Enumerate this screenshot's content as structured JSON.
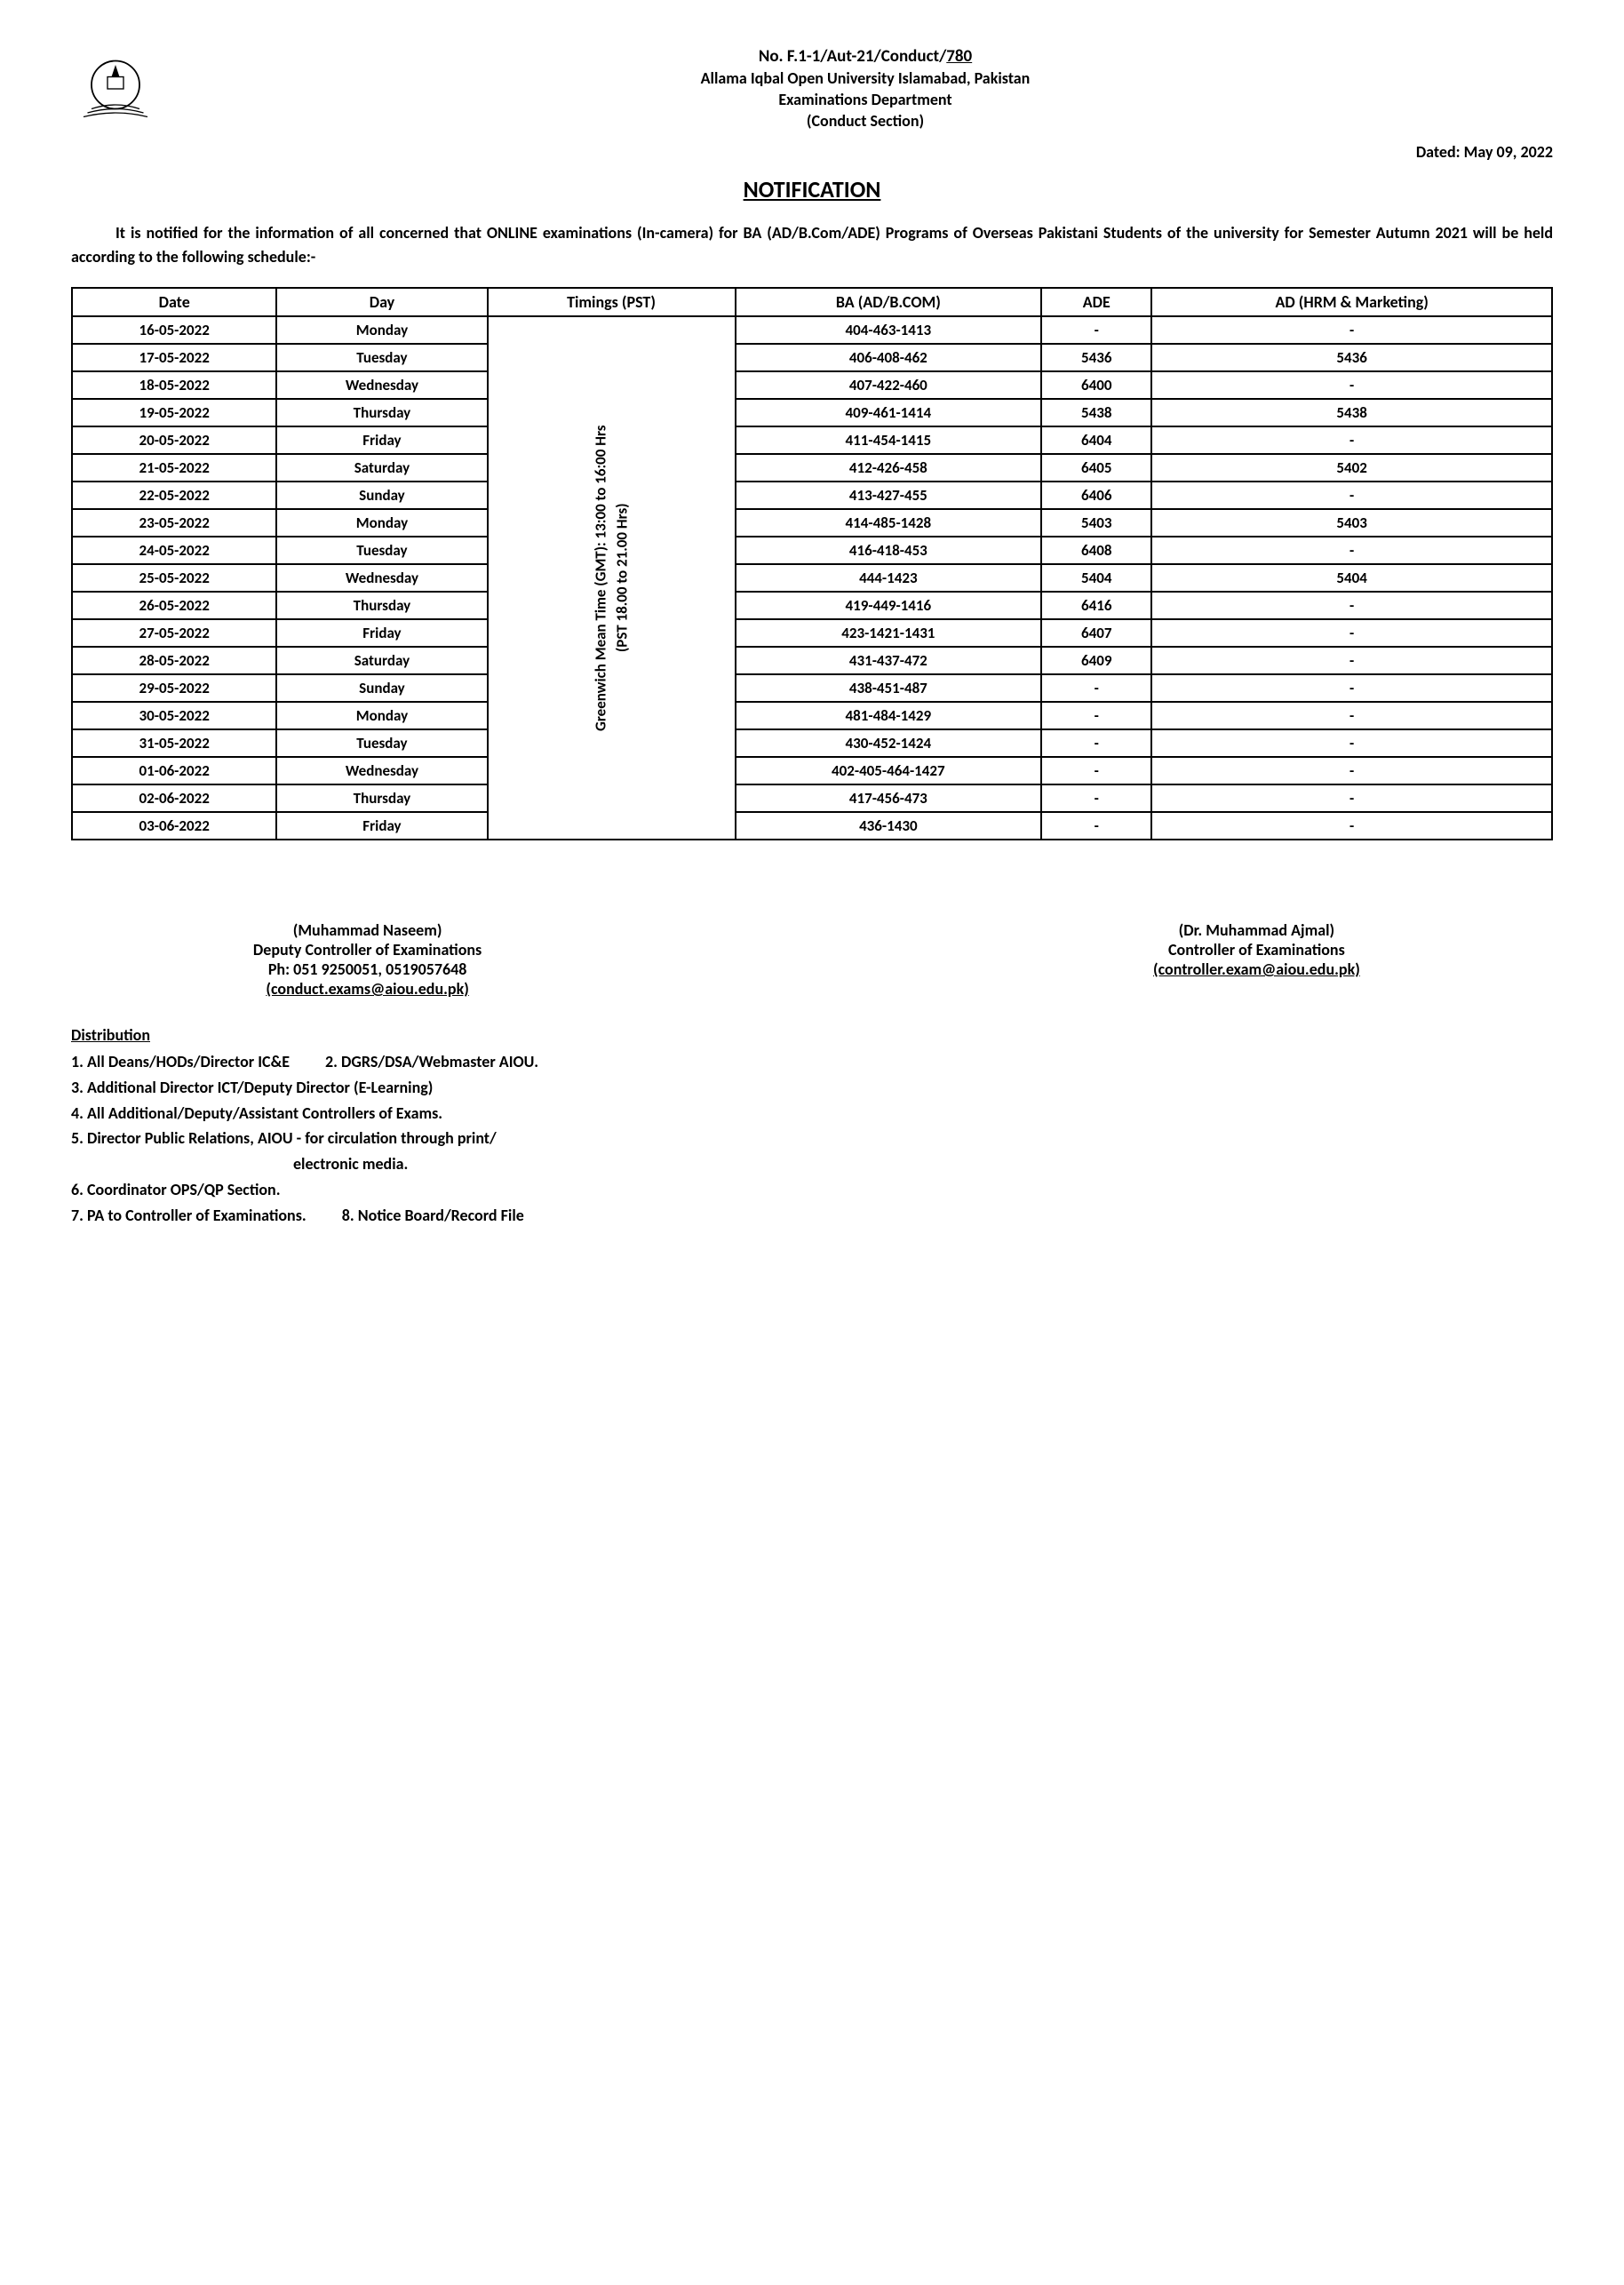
{
  "header": {
    "ref_no_prefix": "No. F.1-1/Aut-21/Conduct/",
    "ref_no_suffix": "780",
    "university": "Allama Iqbal Open University Islamabad, Pakistan",
    "department": "Examinations Department",
    "section": "(Conduct Section)",
    "dated": "Dated: May 09, 2022"
  },
  "title": "NOTIFICATION",
  "intro": "It is notified for the information of all concerned that ONLINE examinations (In-camera) for BA (AD/B.Com/ADE) Programs of Overseas Pakistani Students of the university for Semester Autumn 2021 will be held according to the following schedule:-",
  "table": {
    "columns": [
      "Date",
      "Day",
      "Timings (PST)",
      "BA (AD/B.COM)",
      "ADE",
      "AD (HRM & Marketing)"
    ],
    "timings_text": "Greenwich Mean Time (GMT): 13:00 to 16:00 Hrs\n(PST 18.00 to 21.00 Hrs)",
    "rows": [
      {
        "date": "16-05-2022",
        "day": "Monday",
        "ba": "404-463-1413",
        "ade": "-",
        "adhm": "-"
      },
      {
        "date": "17-05-2022",
        "day": "Tuesday",
        "ba": "406-408-462",
        "ade": "5436",
        "adhm": "5436"
      },
      {
        "date": "18-05-2022",
        "day": "Wednesday",
        "ba": "407-422-460",
        "ade": "6400",
        "adhm": "-"
      },
      {
        "date": "19-05-2022",
        "day": "Thursday",
        "ba": "409-461-1414",
        "ade": "5438",
        "adhm": "5438"
      },
      {
        "date": "20-05-2022",
        "day": "Friday",
        "ba": "411-454-1415",
        "ade": "6404",
        "adhm": "-"
      },
      {
        "date": "21-05-2022",
        "day": "Saturday",
        "ba": "412-426-458",
        "ade": "6405",
        "adhm": "5402"
      },
      {
        "date": "22-05-2022",
        "day": "Sunday",
        "ba": "413-427-455",
        "ade": "6406",
        "adhm": "-"
      },
      {
        "date": "23-05-2022",
        "day": "Monday",
        "ba": "414-485-1428",
        "ade": "5403",
        "adhm": "5403"
      },
      {
        "date": "24-05-2022",
        "day": "Tuesday",
        "ba": "416-418-453",
        "ade": "6408",
        "adhm": "-"
      },
      {
        "date": "25-05-2022",
        "day": "Wednesday",
        "ba": "444-1423",
        "ade": "5404",
        "adhm": "5404"
      },
      {
        "date": "26-05-2022",
        "day": "Thursday",
        "ba": "419-449-1416",
        "ade": "6416",
        "adhm": "-"
      },
      {
        "date": "27-05-2022",
        "day": "Friday",
        "ba": "423-1421-1431",
        "ade": "6407",
        "adhm": "-"
      },
      {
        "date": "28-05-2022",
        "day": "Saturday",
        "ba": "431-437-472",
        "ade": "6409",
        "adhm": "-"
      },
      {
        "date": "29-05-2022",
        "day": "Sunday",
        "ba": "438-451-487",
        "ade": "-",
        "adhm": "-"
      },
      {
        "date": "30-05-2022",
        "day": "Monday",
        "ba": "481-484-1429",
        "ade": "-",
        "adhm": "-"
      },
      {
        "date": "31-05-2022",
        "day": "Tuesday",
        "ba": "430-452-1424",
        "ade": "-",
        "adhm": "-"
      },
      {
        "date": "01-06-2022",
        "day": "Wednesday",
        "ba": "402-405-464-1427",
        "ade": "-",
        "adhm": "-"
      },
      {
        "date": "02-06-2022",
        "day": "Thursday",
        "ba": "417-456-473",
        "ade": "-",
        "adhm": "-"
      },
      {
        "date": "03-06-2022",
        "day": "Friday",
        "ba": "436-1430",
        "ade": "-",
        "adhm": "-"
      }
    ]
  },
  "signatures": {
    "left": {
      "name": "(Muhammad Naseem)",
      "title": "Deputy Controller of Examinations",
      "phone": "Ph: 051 9250051, 0519057648",
      "email": "(conduct.exams@aiou.edu.pk)"
    },
    "right": {
      "name": "(Dr. Muhammad Ajmal)",
      "title": "Controller of Examinations",
      "email": "(controller.exam@aiou.edu.pk)"
    }
  },
  "distribution": {
    "title": "Distribution",
    "items": [
      "1. All Deans/HODs/Director IC&E",
      "2. DGRS/DSA/Webmaster AIOU.",
      "3. Additional Director ICT/Deputy Director (E-Learning)",
      "4. All Additional/Deputy/Assistant Controllers of Exams.",
      "5. Director Public Relations, AIOU - for circulation through print/",
      "electronic media.",
      "6. Coordinator OPS/QP Section.",
      "7. PA to Controller of Examinations.",
      "8. Notice Board/Record File"
    ]
  }
}
